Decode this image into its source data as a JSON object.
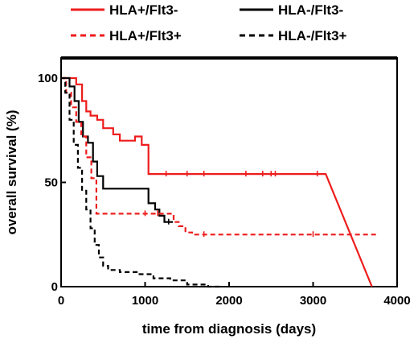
{
  "chart_data": {
    "type": "line",
    "title": "",
    "xlabel": "time from diagnosis (days)",
    "ylabel": "overall survival (%)",
    "xlim": [
      0,
      4000
    ],
    "ylim": [
      0,
      100
    ],
    "x_ticks": [
      0,
      1000,
      2000,
      3000,
      4000
    ],
    "y_ticks": [
      0,
      50,
      100
    ],
    "x_tick_labels": [
      "0",
      "1000",
      "2000",
      "3000",
      "4000"
    ],
    "y_tick_labels": [
      "0",
      "50",
      "100"
    ],
    "grid": false,
    "legend_position": "top",
    "series": [
      {
        "name": "HLA+/Flt3-",
        "color": "#ee1c1c",
        "dash": "solid",
        "x": [
          0,
          180,
          180,
          250,
          250,
          300,
          300,
          350,
          350,
          430,
          430,
          500,
          500,
          620,
          620,
          700,
          700,
          880,
          880,
          960,
          960,
          1040,
          1040,
          3150,
          3700
        ],
        "y": [
          100,
          100,
          97,
          97,
          89,
          89,
          84,
          84,
          82,
          82,
          80,
          80,
          76,
          76,
          73,
          73,
          70,
          70,
          72,
          72,
          68,
          68,
          54,
          54,
          0
        ],
        "censored_x": [
          1250,
          1500,
          1700,
          2200,
          2400,
          2500,
          2550,
          3050
        ]
      },
      {
        "name": "HLA-/Flt3-",
        "color": "#000000",
        "dash": "solid",
        "x": [
          0,
          100,
          100,
          160,
          160,
          210,
          210,
          260,
          260,
          320,
          320,
          380,
          380,
          430,
          430,
          500,
          500,
          1040,
          1040,
          1120,
          1120,
          1170,
          1170,
          1230,
          1230,
          1330
        ],
        "y": [
          100,
          100,
          96,
          96,
          89,
          89,
          79,
          79,
          72,
          72,
          69,
          69,
          60,
          60,
          53,
          53,
          47,
          47,
          40,
          40,
          37,
          37,
          34,
          34,
          31,
          31
        ],
        "censored_x": [
          1280
        ]
      },
      {
        "name": "HLA+/Flt3+",
        "color": "#ee1c1c",
        "dash": "dashed",
        "x": [
          0,
          60,
          60,
          120,
          120,
          180,
          180,
          240,
          240,
          300,
          300,
          360,
          360,
          420,
          420,
          1340,
          1340,
          1400,
          1400,
          1480,
          1480,
          1560,
          1560,
          3770
        ],
        "y": [
          100,
          100,
          93,
          93,
          86,
          86,
          79,
          79,
          72,
          72,
          62,
          62,
          52,
          52,
          35,
          35,
          31,
          31,
          29,
          29,
          26,
          26,
          25,
          25
        ],
        "censored_x": [
          1000,
          1150,
          1700,
          3000
        ]
      },
      {
        "name": "HLA-/Flt3+",
        "color": "#000000",
        "dash": "dashed",
        "x": [
          0,
          50,
          50,
          100,
          100,
          150,
          150,
          200,
          200,
          250,
          250,
          300,
          300,
          350,
          350,
          400,
          400,
          450,
          450,
          500,
          500,
          560,
          560,
          700,
          700,
          900,
          900,
          1100,
          1100,
          1300,
          1300,
          1500,
          1500,
          1750,
          1750,
          1900
        ],
        "y": [
          100,
          100,
          93,
          93,
          80,
          80,
          68,
          68,
          57,
          57,
          46,
          46,
          37,
          37,
          28,
          28,
          20,
          20,
          14,
          14,
          10,
          10,
          8,
          8,
          7,
          7,
          6,
          6,
          4,
          4,
          3,
          3,
          1,
          1,
          0,
          0
        ],
        "censored_x": []
      }
    ]
  }
}
